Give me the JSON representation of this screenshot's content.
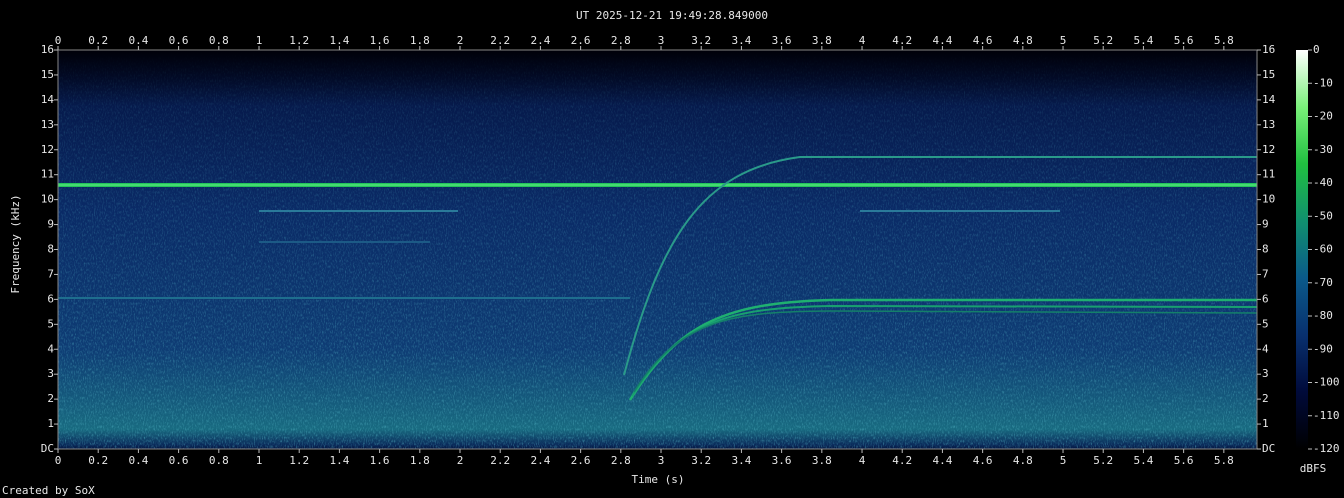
{
  "chart_data": {
    "type": "spectrogram",
    "title": "UT 2025-12-21 19:49:28.849000",
    "xlabel": "Time (s)",
    "ylabel": "Frequency (kHz)",
    "footer": "Created by SoX",
    "xlim": [
      0,
      5.965
    ],
    "xticks": [
      0,
      0.2,
      0.4,
      0.6,
      0.8,
      1,
      1.2,
      1.4,
      1.6,
      1.8,
      2,
      2.2,
      2.4,
      2.6,
      2.8,
      3,
      3.2,
      3.4,
      3.6,
      3.8,
      4,
      4.2,
      4.4,
      4.6,
      4.8,
      5,
      5.2,
      5.4,
      5.6,
      5.8
    ],
    "ylim": [
      0,
      16
    ],
    "yticks": [
      {
        "value": 0,
        "label": "DC"
      },
      1,
      2,
      3,
      4,
      5,
      6,
      7,
      8,
      9,
      10,
      11,
      12,
      13,
      14,
      15,
      16
    ],
    "colorbar": {
      "label": "dBFS",
      "lim": [
        -120,
        0
      ],
      "ticks": [
        0,
        -10,
        -20,
        -30,
        -40,
        -50,
        -60,
        -70,
        -80,
        -90,
        -100,
        -110,
        -120
      ],
      "colors": [
        "#000000",
        "#000a3a",
        "#08306e",
        "#0a5a8a",
        "#10906e",
        "#20c040",
        "#7af07a",
        "#ffffff"
      ]
    }
  }
}
